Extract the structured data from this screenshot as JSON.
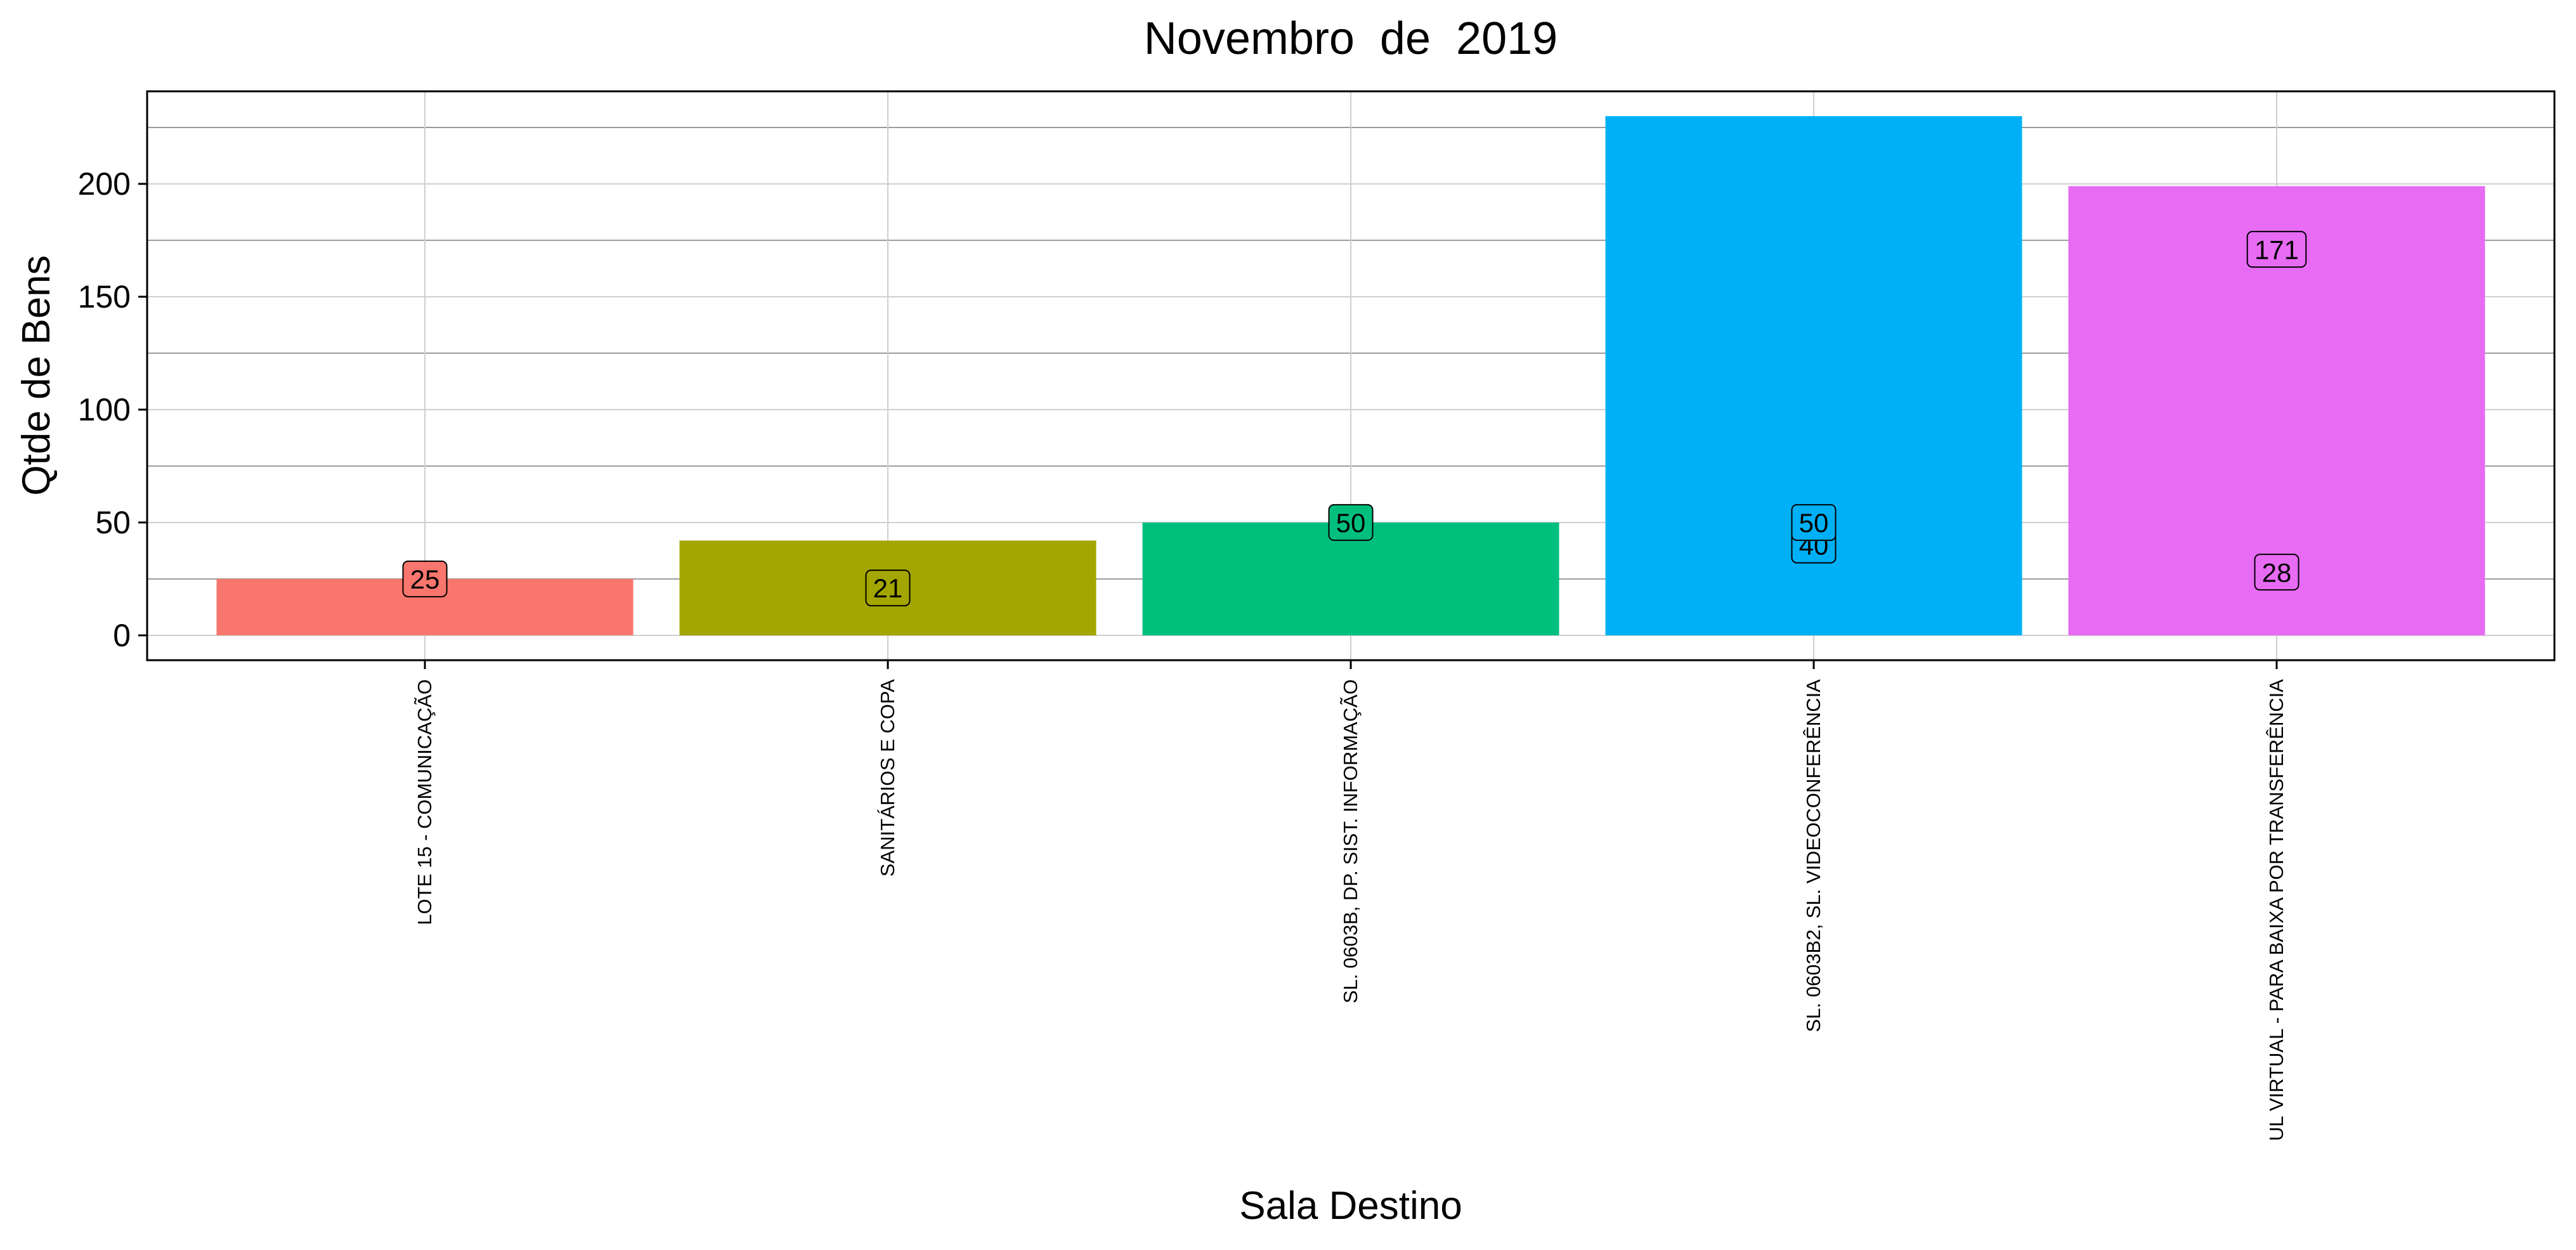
{
  "chart_data": {
    "type": "bar",
    "title": "Novembro  de  2019",
    "xlabel": "Sala Destino",
    "ylabel": "Qtde de Bens",
    "categories": [
      "LOTE 15 - COMUNICAÇÃO",
      "SANITÁRIOS E COPA",
      "SL. 0603B, DP. SIST. INFORMAÇÃO",
      "SL. 0603B2, SL. VIDEOCONFERÊNCIA",
      "UL VIRTUAL - PARA BAIXA POR TRANSFERÊNCIA"
    ],
    "values": [
      25,
      42,
      50,
      230,
      199
    ],
    "colors": [
      "#F8766D",
      "#A3A500",
      "#00BF7D",
      "#00B0F6",
      "#E76BF3"
    ],
    "data_labels": [
      {
        "category_index": 0,
        "text": "25",
        "y": 25
      },
      {
        "category_index": 1,
        "text": "21",
        "y": 21
      },
      {
        "category_index": 2,
        "text": "50",
        "y": 50
      },
      {
        "category_index": 3,
        "text": "40",
        "y": 40
      },
      {
        "category_index": 3,
        "text": "50",
        "y": 50
      },
      {
        "category_index": 4,
        "text": "171",
        "y": 171
      },
      {
        "category_index": 4,
        "text": "28",
        "y": 28
      }
    ],
    "yticks": [
      0,
      50,
      100,
      150,
      200
    ],
    "ylim": [
      -11,
      241
    ],
    "grid": true,
    "legend": "none"
  }
}
